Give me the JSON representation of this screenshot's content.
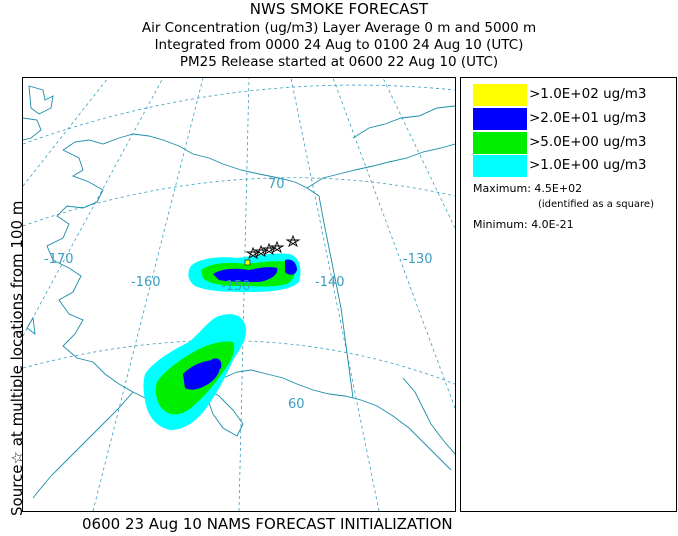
{
  "title": {
    "line1": "NWS SMOKE FORECAST",
    "line2": "Air Concentration (ug/m3) Layer Average    0 m and  5000 m",
    "line3": "Integrated from 0000 24 Aug to 0100 24 Aug 10 (UTC)",
    "line4": "PM25 Release started at 0600 22 Aug 10 (UTC)"
  },
  "side_label": {
    "text": "Source☆ at multiple locations  from   100 m"
  },
  "map": {
    "longitude_labels": [
      "-170",
      "-160",
      "-150",
      "-140",
      "-130"
    ],
    "latitude_labels": [
      "70",
      "60"
    ],
    "colors": {
      "land_outline": "#1a8ca8",
      "graticule": "#3a9ec1",
      "level_1": "#00ffff",
      "level_2": "#00ee00",
      "level_3": "#0000ff",
      "level_4": "#ffff00"
    }
  },
  "legend": {
    "items": [
      {
        "label": ">1.0E+02 ug/m3",
        "color": "#ffff00"
      },
      {
        "label": ">2.0E+01 ug/m3",
        "color": "#0000ff"
      },
      {
        "label": ">5.0E+00 ug/m3",
        "color": "#00ee00"
      },
      {
        "label": ">1.0E+00 ug/m3",
        "color": "#00ffff"
      }
    ],
    "maximum_label": "Maximum:",
    "maximum_value": "4.5E+02",
    "maximum_note": "(identified as a square)",
    "minimum_label": "Minimum:",
    "minimum_value": "4.0E-21"
  },
  "footer": {
    "text": "0600 23 Aug 10 NAMS FORECAST INITIALIZATION"
  }
}
